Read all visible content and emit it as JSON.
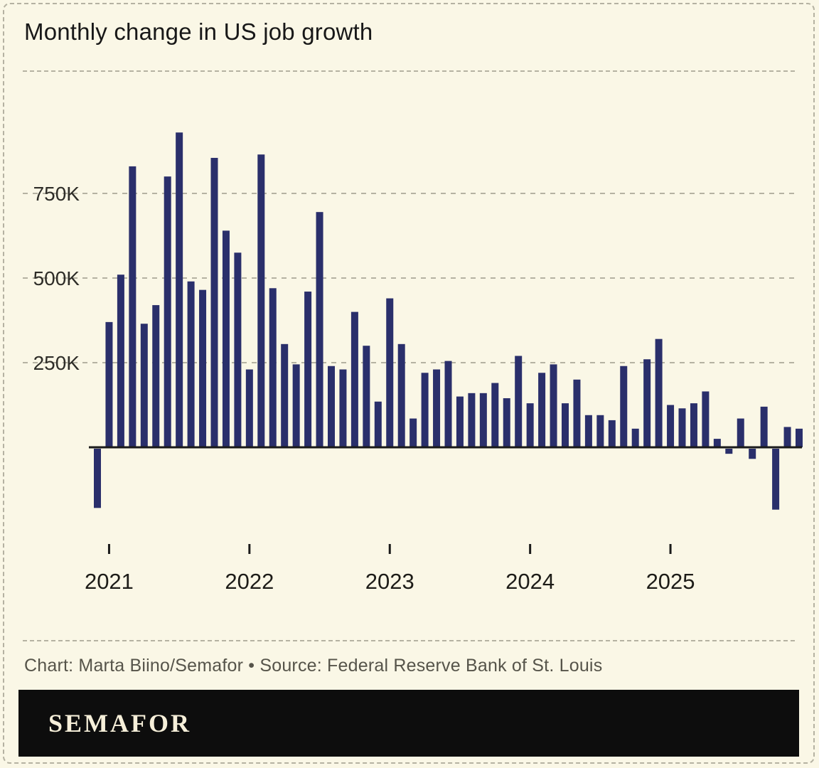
{
  "title": "Monthly change in US job growth",
  "caption": "Chart: Marta Biino/Semafor • Source: Federal Reserve Bank of St. Louis",
  "brand": {
    "logo_text": "SEMAFOR"
  },
  "colors": {
    "background": "#faf7e6",
    "bar": "#2a2f6b",
    "axis": "#1a1a1a",
    "grid": "#b5b2a2",
    "title_text": "#181818",
    "caption_text": "#56544a",
    "brand_band": "#0d0d0d",
    "brand_text": "#f6efd9"
  },
  "chart_data": {
    "type": "bar",
    "title": "Monthly change in US job growth",
    "unit_suffix": "K",
    "grid": "horizontal-dashed",
    "legend": "none",
    "ylim_thousands": [
      -320,
      960
    ],
    "y_tick_labels": [
      "250K",
      "500K",
      "750K"
    ],
    "y_tick_values_thousands": [
      250,
      500,
      750
    ],
    "x_tick_labels": [
      "2021",
      "2022",
      "2023",
      "2024",
      "2025"
    ],
    "months": [
      "2020-12",
      "2021-01",
      "2021-02",
      "2021-03",
      "2021-04",
      "2021-05",
      "2021-06",
      "2021-07",
      "2021-08",
      "2021-09",
      "2021-10",
      "2021-11",
      "2021-12",
      "2022-01",
      "2022-02",
      "2022-03",
      "2022-04",
      "2022-05",
      "2022-06",
      "2022-07",
      "2022-08",
      "2022-09",
      "2022-10",
      "2022-11",
      "2022-12",
      "2023-01",
      "2023-02",
      "2023-03",
      "2023-04",
      "2023-05",
      "2023-06",
      "2023-07",
      "2023-08",
      "2023-09",
      "2023-10",
      "2023-11",
      "2023-12",
      "2024-01",
      "2024-02",
      "2024-03",
      "2024-04",
      "2024-05",
      "2024-06",
      "2024-07",
      "2024-08",
      "2024-09",
      "2024-10",
      "2024-11",
      "2024-12",
      "2025-01",
      "2025-02",
      "2025-03",
      "2025-04",
      "2025-05",
      "2025-06",
      "2025-07",
      "2025-08",
      "2025-09",
      "2025-10",
      "2025-11",
      "2025-12"
    ],
    "values_thousands": [
      -175,
      370,
      510,
      830,
      365,
      420,
      800,
      930,
      490,
      465,
      855,
      640,
      575,
      230,
      865,
      470,
      305,
      245,
      460,
      695,
      240,
      230,
      400,
      300,
      135,
      440,
      305,
      85,
      220,
      230,
      255,
      150,
      160,
      160,
      190,
      145,
      270,
      130,
      220,
      245,
      130,
      200,
      95,
      95,
      80,
      240,
      55,
      260,
      320,
      125,
      115,
      130,
      165,
      25,
      -15,
      85,
      -30,
      120,
      -180,
      60,
      55
    ]
  }
}
